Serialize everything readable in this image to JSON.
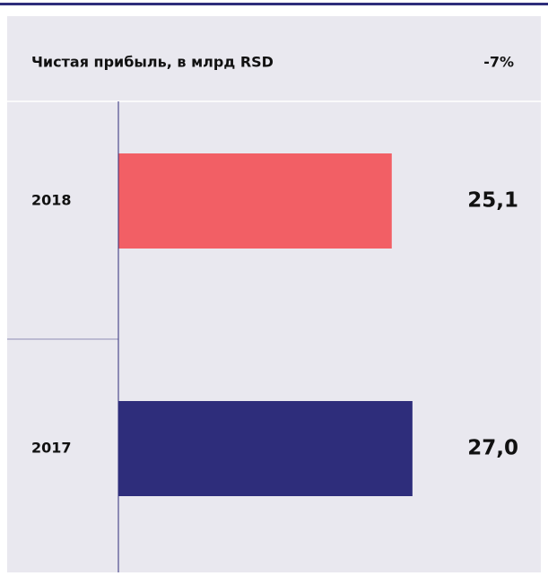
{
  "chart_data": {
    "type": "barh",
    "title": "Чистая прибыль, в млрд RSD",
    "annotation": "-7%",
    "categories": [
      "2018",
      "2017"
    ],
    "values": [
      25.1,
      27.0
    ],
    "value_labels": [
      "25,1",
      "27,0"
    ],
    "colors": [
      "#f25f65",
      "#2e2d7b"
    ],
    "xlim": [
      0,
      35
    ]
  }
}
